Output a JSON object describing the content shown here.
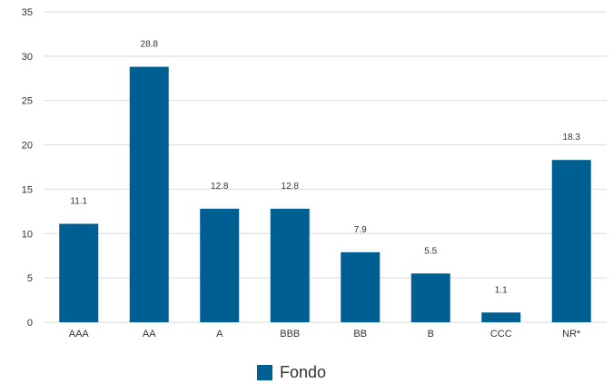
{
  "chart_data": {
    "type": "bar",
    "categories": [
      "AAA",
      "AA",
      "A",
      "BBB",
      "BB",
      "B",
      "CCC",
      "NR*"
    ],
    "series": [
      {
        "name": "Fondo",
        "values": [
          11.1,
          28.8,
          12.8,
          12.8,
          7.9,
          5.5,
          1.1,
          18.3
        ],
        "color": "#005f92"
      }
    ],
    "data_labels": [
      "11.1",
      "28.8",
      "12.8",
      "12.8",
      "7.9",
      "5.5",
      "1.1",
      "18.3"
    ],
    "yticks": [
      "0",
      "5",
      "10",
      "15",
      "20",
      "25",
      "30",
      "35"
    ],
    "ylim": [
      0,
      35
    ],
    "grid": true,
    "legend_position": "bottom-center",
    "title": "",
    "xlabel": "",
    "ylabel": ""
  }
}
